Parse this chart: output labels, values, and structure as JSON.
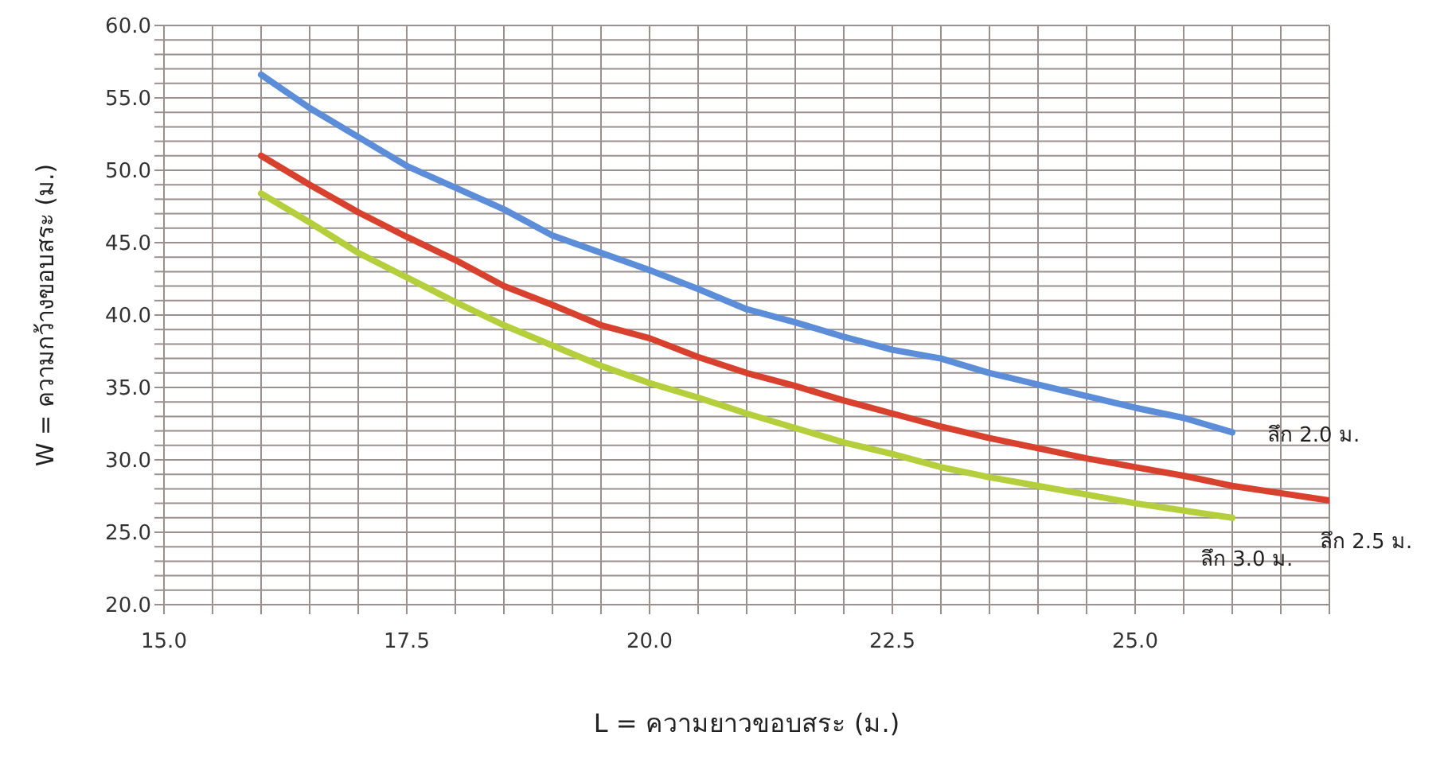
{
  "chart_data": {
    "type": "line",
    "xlabel": "L = ความยาวขอบสระ (ม.)",
    "ylabel": "W = ความกว้างขอบสระ (ม.)",
    "xlim": [
      15,
      27
    ],
    "ylim": [
      20,
      60
    ],
    "xticks": [
      {
        "value": 15,
        "label": "15.0"
      },
      {
        "value": 15.5,
        "label": null
      },
      {
        "value": 16,
        "label": null
      },
      {
        "value": 16.5,
        "label": null
      },
      {
        "value": 17,
        "label": null
      },
      17.5,
      {
        "value": 18,
        "label": null
      },
      {
        "value": 18.5,
        "label": null
      },
      {
        "value": 19,
        "label": null
      },
      {
        "value": 19.5,
        "label": null
      },
      {
        "value": 20,
        "label": "20.0"
      },
      {
        "value": 20.5,
        "label": null
      },
      {
        "value": 21,
        "label": null
      },
      {
        "value": 21.5,
        "label": null
      },
      {
        "value": 22,
        "label": null
      },
      22.5,
      {
        "value": 23,
        "label": null
      },
      {
        "value": 23.5,
        "label": null
      },
      {
        "value": 24,
        "label": null
      },
      {
        "value": 24.5,
        "label": null
      },
      {
        "value": 25,
        "label": "25.0"
      },
      {
        "value": 25.5,
        "label": null
      },
      {
        "value": 26,
        "label": null
      },
      {
        "value": 26.5,
        "label": null
      },
      {
        "value": 27,
        "label": null
      }
    ],
    "yticks": [
      {
        "value": 20,
        "label": "20.0"
      },
      {
        "value": 21,
        "label": null
      },
      {
        "value": 22,
        "label": null
      },
      {
        "value": 23,
        "label": null
      },
      {
        "value": 24,
        "label": null
      },
      {
        "value": 25,
        "label": "25.0"
      },
      {
        "value": 26,
        "label": null
      },
      {
        "value": 27,
        "label": null
      },
      {
        "value": 28,
        "label": null
      },
      {
        "value": 29,
        "label": null
      },
      {
        "value": 30,
        "label": "30.0"
      },
      {
        "value": 31,
        "label": null
      },
      {
        "value": 32,
        "label": null
      },
      {
        "value": 33,
        "label": null
      },
      {
        "value": 34,
        "label": null
      },
      {
        "value": 35,
        "label": "35.0"
      },
      {
        "value": 36,
        "label": null
      },
      {
        "value": 37,
        "label": null
      },
      {
        "value": 38,
        "label": null
      },
      {
        "value": 39,
        "label": null
      },
      {
        "value": 40,
        "label": "40.0"
      },
      {
        "value": 41,
        "label": null
      },
      {
        "value": 42,
        "label": null
      },
      {
        "value": 43,
        "label": null
      },
      {
        "value": 44,
        "label": null
      },
      {
        "value": 45,
        "label": "45.0"
      },
      {
        "value": 46,
        "label": null
      },
      {
        "value": 47,
        "label": null
      },
      {
        "value": 48,
        "label": null
      },
      {
        "value": 49,
        "label": null
      },
      {
        "value": 50,
        "label": "50.0"
      },
      {
        "value": 51,
        "label": null
      },
      {
        "value": 52,
        "label": null
      },
      {
        "value": 53,
        "label": null
      },
      {
        "value": 54,
        "label": null
      },
      {
        "value": 55,
        "label": "55.0"
      },
      {
        "value": 56,
        "label": null
      },
      {
        "value": 57,
        "label": null
      },
      {
        "value": 58,
        "label": null
      },
      {
        "value": 59,
        "label": null
      },
      {
        "value": 60,
        "label": "60.0"
      }
    ],
    "grid": true,
    "marker": "none",
    "line_style": "solid",
    "series": [
      {
        "name": "ลึก 2.0 ม.",
        "color": "#5b8dd9",
        "x": [
          16,
          16.5,
          17,
          17.5,
          18,
          18.5,
          19,
          19.5,
          20,
          20.5,
          21,
          21.5,
          22,
          22.5,
          23,
          23.5,
          24,
          24.5,
          25,
          25.5,
          26
        ],
        "values": [
          56.6,
          54.3,
          52.3,
          50.3,
          48.8,
          47.3,
          45.5,
          44.3,
          43.1,
          41.8,
          40.4,
          39.5,
          38.5,
          37.6,
          37.0,
          36.0,
          35.2,
          34.4,
          33.6,
          32.9,
          31.9
        ]
      },
      {
        "name": "ลึก 2.5 ม.",
        "color": "#d9412f",
        "x": [
          16,
          16.5,
          17,
          17.5,
          18,
          18.5,
          19,
          19.5,
          20,
          20.5,
          21,
          21.5,
          22,
          22.5,
          23,
          23.5,
          24,
          24.5,
          25,
          25.5,
          26,
          26.5,
          27
        ],
        "values": [
          51.0,
          49.0,
          47.1,
          45.4,
          43.8,
          42.0,
          40.7,
          39.3,
          38.4,
          37.1,
          36.0,
          35.1,
          34.1,
          33.2,
          32.3,
          31.5,
          30.8,
          30.1,
          29.5,
          28.9,
          28.2,
          27.7,
          27.2
        ]
      },
      {
        "name": "ลึก 3.0 ม.",
        "color": "#b5cf3c",
        "x": [
          16,
          16.5,
          17,
          17.5,
          18,
          18.5,
          19,
          19.5,
          20,
          20.5,
          21,
          21.5,
          22,
          22.5,
          23,
          23.5,
          24,
          24.5,
          25,
          25.5,
          26
        ],
        "values": [
          48.4,
          46.4,
          44.3,
          42.6,
          40.9,
          39.3,
          37.9,
          36.5,
          35.3,
          34.3,
          33.2,
          32.2,
          31.2,
          30.4,
          29.5,
          28.8,
          28.2,
          27.6,
          27.0,
          26.5,
          26.0
        ]
      }
    ]
  }
}
